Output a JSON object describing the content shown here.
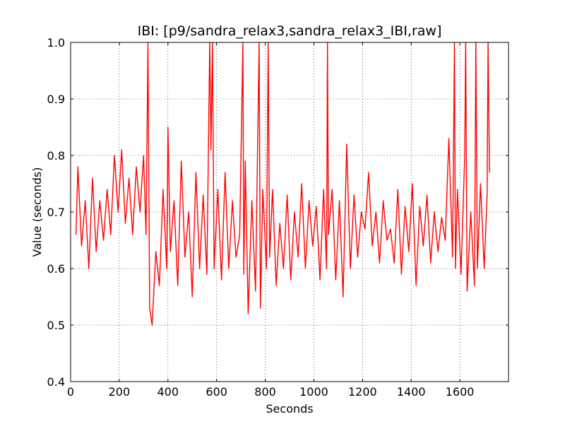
{
  "chart_data": {
    "type": "line",
    "title": "IBI: [p9/sandra_relax3,sandra_relax3_IBI,raw]",
    "xlabel": "Seconds",
    "ylabel": "Value (seconds)",
    "xlim": [
      0,
      1800
    ],
    "ylim": [
      0.4,
      1.0
    ],
    "xticks": [
      0,
      200,
      400,
      600,
      800,
      1000,
      1200,
      1400,
      1600
    ],
    "xtick_labels": [
      "0",
      "200",
      "400",
      "600",
      "800",
      "1000",
      "1200",
      "1400",
      "1600"
    ],
    "yticks": [
      0.4,
      0.5,
      0.6,
      0.7,
      0.8,
      0.9,
      1.0
    ],
    "ytick_labels": [
      "0.4",
      "0.5",
      "0.6",
      "0.7",
      "0.8",
      "0.9",
      "1.0"
    ],
    "grid": true,
    "line_color": "#ff0000",
    "series": [
      {
        "x": [
          22,
          30,
          45,
          60,
          75,
          90,
          105,
          120,
          135,
          150,
          165,
          180,
          195,
          210,
          225,
          240,
          255,
          270,
          285,
          300,
          310,
          318,
          325,
          335,
          350,
          365,
          380,
          395,
          400,
          410,
          425,
          440,
          455,
          470,
          485,
          500,
          515,
          530,
          545,
          560,
          572,
          577,
          583,
          590,
          605,
          620,
          635,
          650,
          665,
          680,
          695,
          708,
          712,
          718,
          730,
          745,
          760,
          775,
          780,
          790,
          805,
          812,
          818,
          830,
          845,
          860,
          875,
          890,
          905,
          920,
          935,
          950,
          965,
          980,
          995,
          1010,
          1025,
          1040,
          1052,
          1056,
          1060,
          1075,
          1090,
          1105,
          1120,
          1135,
          1150,
          1165,
          1180,
          1195,
          1210,
          1225,
          1240,
          1255,
          1270,
          1285,
          1300,
          1315,
          1330,
          1345,
          1360,
          1375,
          1390,
          1405,
          1420,
          1435,
          1450,
          1465,
          1480,
          1495,
          1510,
          1525,
          1540,
          1555,
          1570,
          1578,
          1582,
          1590,
          1605,
          1620,
          1624,
          1630,
          1645,
          1660,
          1666,
          1672,
          1685,
          1700,
          1712,
          1716,
          1722
        ],
        "y": [
          0.66,
          0.78,
          0.64,
          0.72,
          0.6,
          0.76,
          0.63,
          0.72,
          0.65,
          0.74,
          0.66,
          0.8,
          0.7,
          0.81,
          0.68,
          0.76,
          0.66,
          0.78,
          0.7,
          0.8,
          0.66,
          1.0,
          0.53,
          0.5,
          0.63,
          0.57,
          0.74,
          0.6,
          0.85,
          0.63,
          0.72,
          0.57,
          0.79,
          0.62,
          0.7,
          0.55,
          0.77,
          0.6,
          0.73,
          0.59,
          1.0,
          0.81,
          1.0,
          0.6,
          0.74,
          0.58,
          0.77,
          0.6,
          0.72,
          0.62,
          0.66,
          1.0,
          0.59,
          0.79,
          0.52,
          0.72,
          0.56,
          1.0,
          0.53,
          0.74,
          0.6,
          1.0,
          0.62,
          0.74,
          0.57,
          0.68,
          0.6,
          0.73,
          0.58,
          0.7,
          0.62,
          0.75,
          0.6,
          0.72,
          0.64,
          0.71,
          0.58,
          0.74,
          0.6,
          1.0,
          0.66,
          0.74,
          0.58,
          0.72,
          0.55,
          0.82,
          0.6,
          0.73,
          0.62,
          0.7,
          0.67,
          0.77,
          0.64,
          0.7,
          0.61,
          0.72,
          0.65,
          0.67,
          0.61,
          0.74,
          0.59,
          0.71,
          0.63,
          0.75,
          0.57,
          0.71,
          0.64,
          0.73,
          0.61,
          0.7,
          0.63,
          0.69,
          0.65,
          0.83,
          0.62,
          1.0,
          0.6,
          0.74,
          0.59,
          0.8,
          1.0,
          0.56,
          0.7,
          0.57,
          1.0,
          0.6,
          0.75,
          0.6,
          0.73,
          1.0,
          0.77
        ]
      }
    ]
  }
}
